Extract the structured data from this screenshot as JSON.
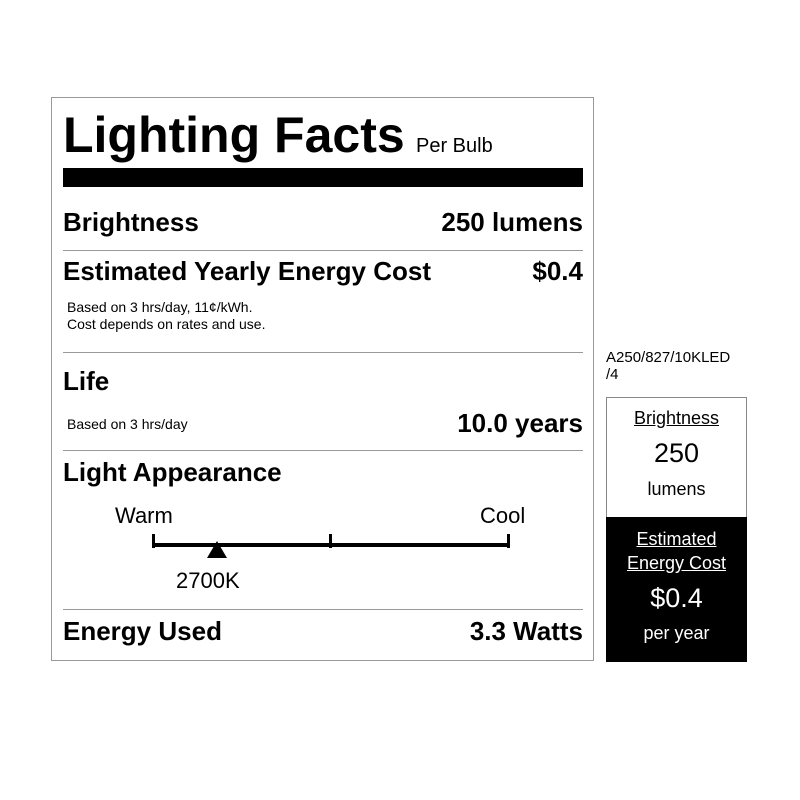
{
  "title": "Lighting Facts",
  "subtitle": "Per Bulb",
  "brightness": {
    "label": "Brightness",
    "value": "250 lumens"
  },
  "cost": {
    "label": "Estimated Yearly Energy Cost",
    "value": "$0.4",
    "note1": "Based on 3 hrs/day, 11¢/kWh.",
    "note2": "Cost depends on rates and use."
  },
  "life": {
    "label": "Life",
    "note": "Based on 3 hrs/day",
    "value": "10.0 years"
  },
  "appearance": {
    "label": "Light Appearance",
    "warm": "Warm",
    "cool": "Cool",
    "value": "2700K",
    "position_fraction": 0.18
  },
  "energy": {
    "label": "Energy Used",
    "value": "3.3 Watts"
  },
  "side": {
    "model": "A250/827/10KLED",
    "model2": "/4",
    "brightness_label": "Brightness",
    "brightness_value": "250",
    "brightness_unit": "lumens",
    "cost_label1": "Estimated",
    "cost_label2": "Energy Cost",
    "cost_value": "$0.4",
    "cost_unit": "per year"
  }
}
